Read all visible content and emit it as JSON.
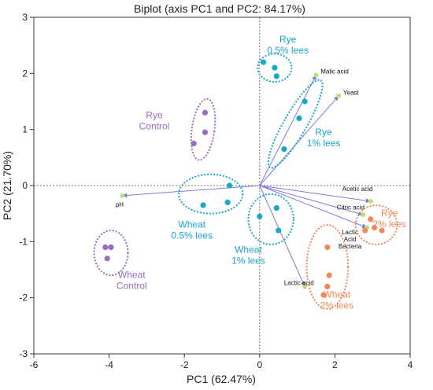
{
  "chart_data": {
    "type": "scatter",
    "title": "Biplot (axis PC1 and PC2: 84.17%)",
    "xlabel": "PC1 (62.47%)",
    "ylabel": "PC2 (21.70%)",
    "xlim": [
      -6,
      4
    ],
    "ylim": [
      -3,
      3
    ],
    "xticks": [
      "-6",
      "-4",
      "-2",
      "0",
      "2",
      "4"
    ],
    "yticks": [
      "-3",
      "-2",
      "-1",
      "0",
      "1",
      "2",
      "3"
    ],
    "grid": false,
    "colors": {
      "rye_05": "#1aa7c9",
      "rye_1": "#1aa7c9",
      "wheat_05": "#1aa7c9",
      "wheat_1": "#1aa7c9",
      "rye_control": "#9b6bc2",
      "wheat_control": "#9b6bc2",
      "rye_2": "#f08a5a",
      "wheat_2": "#f08a5a",
      "arrow": "#7b7bdc",
      "arrow_tip": "#b8e07a"
    },
    "groups": [
      {
        "key": "rye_05",
        "label": [
          "Rye",
          "0.5% lees"
        ],
        "label_x": 0.75,
        "label_y": 2.55,
        "ellipse": {
          "cx": 0.4,
          "cy": 2.1,
          "rx": 0.45,
          "ry": 0.25,
          "rot": 0
        },
        "points": [
          [
            0.1,
            2.2
          ],
          [
            0.4,
            2.1
          ],
          [
            0.45,
            1.95
          ]
        ]
      },
      {
        "key": "rye_1",
        "label": [
          "Rye",
          "1% lees"
        ],
        "label_x": 1.7,
        "label_y": 0.9,
        "ellipse": {
          "cx": 0.95,
          "cy": 1.1,
          "rx": 0.3,
          "ry": 0.9,
          "rot": 30
        },
        "points": [
          [
            1.2,
            1.5
          ],
          [
            1.05,
            1.2
          ],
          [
            0.65,
            0.65
          ]
        ]
      },
      {
        "key": "wheat_05",
        "label": [
          "Wheat",
          "0.5% lees"
        ],
        "label_x": -1.8,
        "label_y": -0.75,
        "ellipse": {
          "cx": -1.3,
          "cy": -0.15,
          "rx": 0.85,
          "ry": 0.35,
          "rot": 0
        },
        "points": [
          [
            -0.8,
            0.0
          ],
          [
            -1.5,
            -0.35
          ],
          [
            -0.85,
            -0.3
          ]
        ]
      },
      {
        "key": "wheat_1",
        "label": [
          "Wheat",
          "1% lees"
        ],
        "label_x": -0.3,
        "label_y": -1.2,
        "ellipse": {
          "cx": 0.3,
          "cy": -0.6,
          "rx": 0.6,
          "ry": 0.45,
          "rot": 0
        },
        "points": [
          [
            0.0,
            -0.55
          ],
          [
            0.45,
            -0.4
          ],
          [
            0.5,
            -0.8
          ]
        ]
      },
      {
        "key": "rye_control",
        "label": [
          "Rye",
          "Control"
        ],
        "label_x": -2.8,
        "label_y": 1.2,
        "ellipse": {
          "cx": -1.5,
          "cy": 1.0,
          "rx": 0.3,
          "ry": 0.55,
          "rot": 8
        },
        "points": [
          [
            -1.45,
            1.3
          ],
          [
            -1.45,
            0.95
          ],
          [
            -1.75,
            0.75
          ]
        ]
      },
      {
        "key": "wheat_control",
        "label": [
          "Wheat",
          "Control"
        ],
        "label_x": -3.4,
        "label_y": -1.65,
        "ellipse": {
          "cx": -3.95,
          "cy": -1.2,
          "rx": 0.45,
          "ry": 0.4,
          "rot": 0
        },
        "points": [
          [
            -4.1,
            -1.1
          ],
          [
            -3.95,
            -1.1
          ],
          [
            -4.05,
            -1.3
          ]
        ]
      },
      {
        "key": "rye_2",
        "label": [
          "Rye",
          "2% lees"
        ],
        "label_x": 3.45,
        "label_y": -0.55,
        "ellipse": {
          "cx": 3.1,
          "cy": -0.7,
          "rx": 0.55,
          "ry": 0.35,
          "rot": 0
        },
        "points": [
          [
            2.95,
            -0.6
          ],
          [
            3.05,
            -0.75
          ],
          [
            3.25,
            -0.8
          ],
          [
            2.8,
            -0.8
          ]
        ]
      },
      {
        "key": "wheat_2",
        "label": [
          "Wheat",
          "2% lees"
        ],
        "label_x": 2.05,
        "label_y": -2.0,
        "ellipse": {
          "cx": 1.8,
          "cy": -1.45,
          "rx": 0.55,
          "ry": 0.75,
          "rot": 0
        },
        "points": [
          [
            1.8,
            -1.1
          ],
          [
            1.85,
            -1.6
          ],
          [
            1.8,
            -1.8
          ],
          [
            1.7,
            -1.95
          ]
        ]
      }
    ],
    "variables": [
      {
        "name": "Malic acid",
        "x": 1.5,
        "y": 1.97,
        "lx": 1.62,
        "ly": 2.0,
        "anchor": "start"
      },
      {
        "name": "Yeast",
        "x": 2.1,
        "y": 1.6,
        "lx": 2.22,
        "ly": 1.62,
        "anchor": "start"
      },
      {
        "name": "Acetic acid",
        "x": 2.95,
        "y": -0.28,
        "lx": 2.6,
        "ly": -0.1,
        "anchor": "middle"
      },
      {
        "name": "Citric acid",
        "x": 2.75,
        "y": -0.52,
        "lx": 2.05,
        "ly": -0.43,
        "anchor": "start"
      },
      {
        "name": [
          "Lactic",
          "Acid",
          "Bacteria"
        ],
        "x": 2.85,
        "y": -0.75,
        "lx": 2.4,
        "ly": -0.87,
        "anchor": "middle"
      },
      {
        "name": "Lactic acid",
        "x": 1.2,
        "y": -1.8,
        "lx": 0.65,
        "ly": -1.77,
        "anchor": "start"
      },
      {
        "name": "pH",
        "x": -3.65,
        "y": -0.18,
        "lx": -3.72,
        "ly": -0.38,
        "anchor": "middle"
      }
    ]
  }
}
